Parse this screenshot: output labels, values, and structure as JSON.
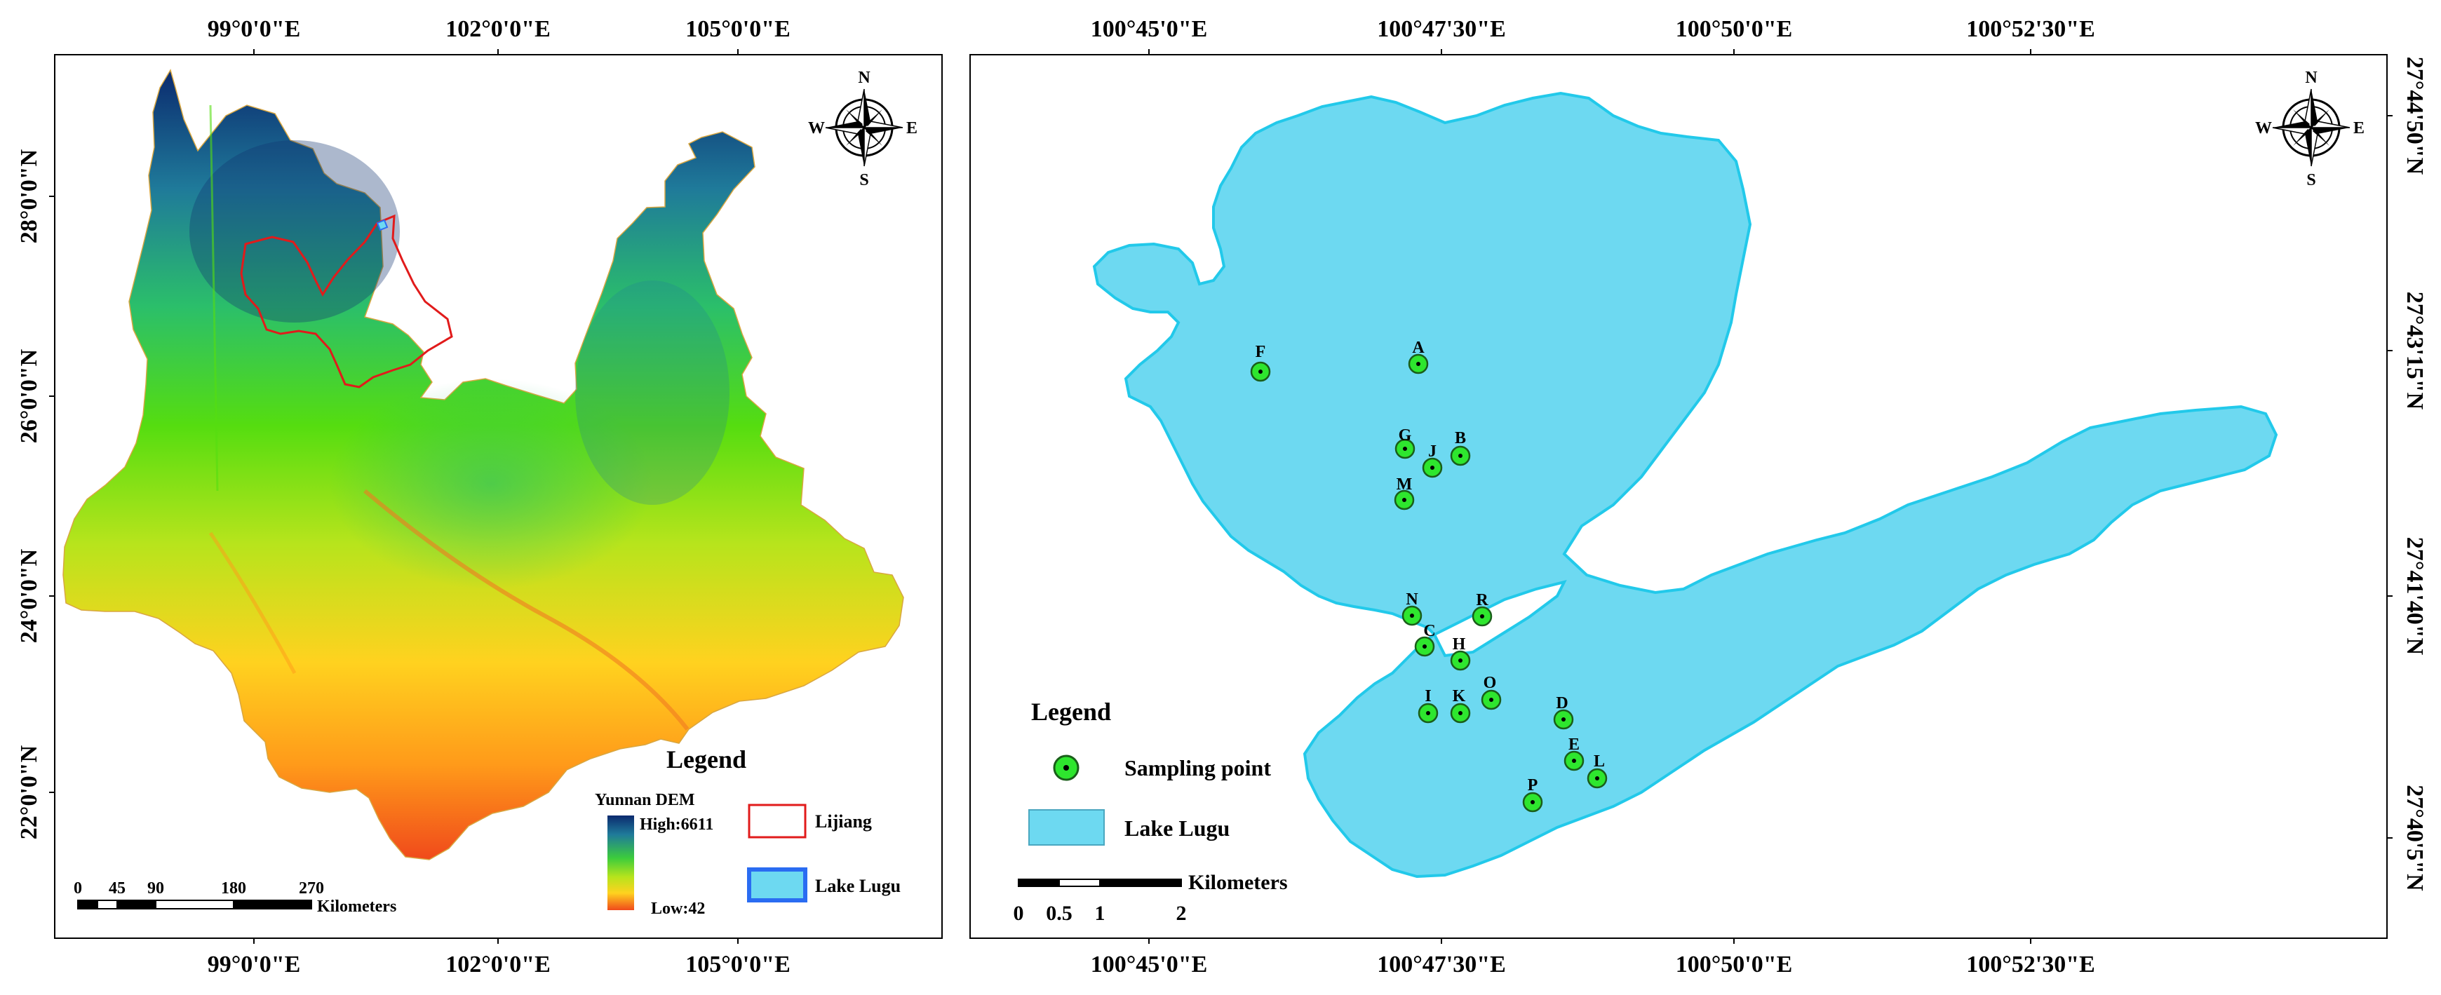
{
  "left_panel": {
    "top_ticks": [
      "99°0'0\"E",
      "102°0'0\"E",
      "105°0'0\"E"
    ],
    "bottom_ticks": [
      "99°0'0\"E",
      "102°0'0\"E",
      "105°0'0\"E"
    ],
    "left_ticks": [
      "28°0'0\"N",
      "26°0'0\"N",
      "24°0'0\"N",
      "22°0'0\"N"
    ],
    "compass": {
      "n": "N",
      "s": "S",
      "e": "E",
      "w": "W"
    },
    "legend": {
      "title": "Legend",
      "dem_title": "Yunnan DEM",
      "dem_high": "High:6611",
      "dem_low": "Low:42",
      "lijiang_label": "Lijiang",
      "lake_label": "Lake Lugu",
      "dem_colors": [
        "#0b2a6e",
        "#1f7a9a",
        "#2bbf6a",
        "#55dd10",
        "#b7e41c",
        "#ffd21f",
        "#ff9a1a",
        "#f04a1b"
      ]
    },
    "scalebar": {
      "ticks": [
        "0",
        "45",
        "90",
        "180",
        "270"
      ],
      "unit": "Kilometers"
    },
    "colors": {
      "lijiang_outline": "#e11b1b",
      "lake_outline": "#2a6cf2"
    }
  },
  "right_panel": {
    "top_ticks": [
      "100°45'0\"E",
      "100°47'30\"E",
      "100°50'0\"E",
      "100°52'30\"E"
    ],
    "bottom_ticks": [
      "100°45'0\"E",
      "100°47'30\"E",
      "100°50'0\"E",
      "100°52'30\"E"
    ],
    "right_ticks": [
      "27°44'50\"N",
      "27°43'15\"N",
      "27°41'40\"N",
      "27°40'5\"N"
    ],
    "compass": {
      "n": "N",
      "s": "S",
      "e": "E",
      "w": "W"
    },
    "legend": {
      "title": "Legend",
      "sampling_label": "Sampling point",
      "lake_label": "Lake Lugu"
    },
    "scalebar": {
      "ticks": [
        "0",
        "0.5",
        "1",
        "2"
      ],
      "unit": "Kilometers"
    },
    "colors": {
      "lake_fill": "#6dd9f1",
      "lake_stroke": "#22c9ea",
      "point_fill": "#2ee62e",
      "point_stroke": "#1a5e1a"
    },
    "sampling_points": [
      {
        "label": "A"
      },
      {
        "label": "F"
      },
      {
        "label": "G"
      },
      {
        "label": "J"
      },
      {
        "label": "B"
      },
      {
        "label": "M"
      },
      {
        "label": "N"
      },
      {
        "label": "R"
      },
      {
        "label": "C"
      },
      {
        "label": "H"
      },
      {
        "label": "O"
      },
      {
        "label": "I"
      },
      {
        "label": "K"
      },
      {
        "label": "D"
      },
      {
        "label": "E"
      },
      {
        "label": "L"
      },
      {
        "label": "P"
      }
    ]
  }
}
